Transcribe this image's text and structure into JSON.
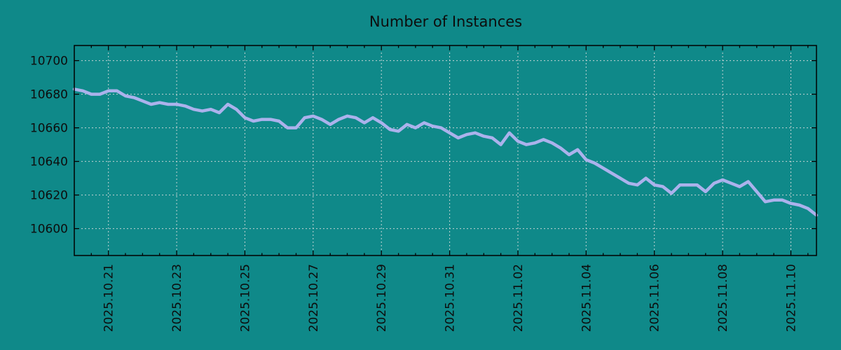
{
  "title": "Number of Instances",
  "colors": {
    "background": "#0f8989",
    "line": "#abb2ec",
    "grid": "#c4d4d4",
    "axis": "#000000",
    "text": "#0d0d0d"
  },
  "chart_data": {
    "type": "line",
    "title": "Number of Instances",
    "xlabel": "",
    "ylabel": "",
    "legend": "none",
    "grid": "dashed",
    "x_start": "2025-10-20 00:00",
    "x_end": "2025-11-10 18:00",
    "x_step_hours": 6,
    "x_total_days": 21.75,
    "x_tick_labels": [
      "2025.10.21",
      "2025.10.23",
      "2025.10.25",
      "2025.10.27",
      "2025.10.29",
      "2025.10.31",
      "2025.11.02",
      "2025.11.04",
      "2025.11.06",
      "2025.11.08",
      "2025.11.10"
    ],
    "x_tick_positions_days": [
      1,
      3,
      5,
      7,
      9,
      11,
      13,
      15,
      17,
      19,
      21
    ],
    "x_minor_tick_interval_days": 0.5,
    "y_ticks": [
      10600,
      10620,
      10640,
      10660,
      10680,
      10700
    ],
    "ylim": [
      10584,
      10709
    ],
    "series_name": "Number of Instances",
    "values": [
      10683,
      10682,
      10680,
      10680,
      10682,
      10682,
      10679,
      10678,
      10676,
      10674,
      10675,
      10674,
      10674,
      10673,
      10671,
      10670,
      10671,
      10669,
      10674,
      10671,
      10666,
      10664,
      10665,
      10665,
      10664,
      10660,
      10660,
      10666,
      10667,
      10665,
      10662,
      10665,
      10667,
      10666,
      10663,
      10666,
      10663,
      10659,
      10658,
      10662,
      10660,
      10663,
      10661,
      10660,
      10657,
      10654,
      10656,
      10657,
      10655,
      10654,
      10650,
      10657,
      10652,
      10650,
      10651,
      10653,
      10651,
      10648,
      10644,
      10647,
      10641,
      10639,
      10636,
      10633,
      10630,
      10627,
      10626,
      10630,
      10626,
      10625,
      10621,
      10626,
      10626,
      10626,
      10622,
      10627,
      10629,
      10627,
      10625,
      10628,
      10622,
      10616,
      10617,
      10617,
      10615,
      10614,
      10612,
      10608
    ]
  }
}
